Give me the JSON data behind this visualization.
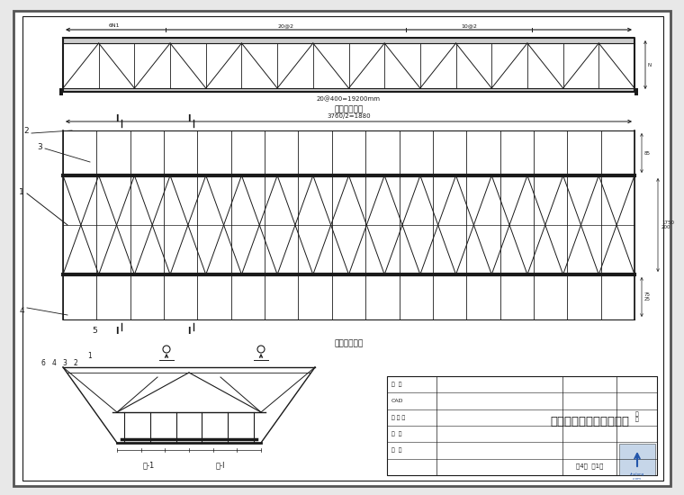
{
  "bg_color": "#e8e8e8",
  "paper_color": "#ffffff",
  "line_color": "#1a1a1a",
  "title_main": "预制钢筋吊架结构施工图",
  "view1_label": "钢筋笼侧视图",
  "view2_label": "钢筋笼俯视图",
  "dim1_text": "20@400=19200mm",
  "dim1_sub1": "6N1",
  "dim1_sub2": "20@2",
  "dim1_sub3": "10@2",
  "dim2_text": "3760/2=1880",
  "section_label1": "剖-1",
  "section_label2": "剖-I",
  "row_labels": [
    "设  计",
    "CAD",
    "检 验 员",
    "审  核",
    "监  理"
  ],
  "page_info": "第4张  第1张"
}
